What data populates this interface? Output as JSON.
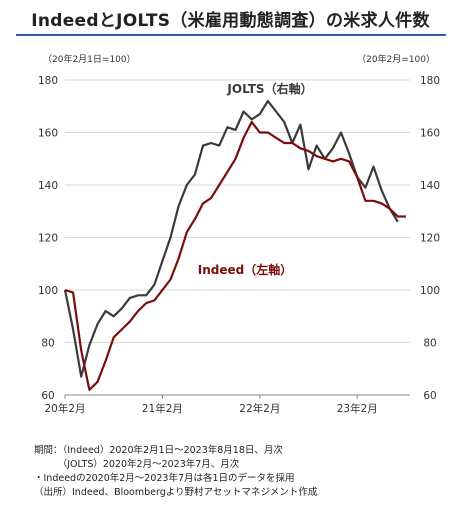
{
  "title": "IndeedとJOLTS（米雇用動態調査）の米求人件数",
  "unit_left": "（20年2月1日=100）",
  "unit_right": "（20年2月=100）",
  "notes": [
    "期間：（Indeed）2020年2月1日～2023年8月18日、月次",
    "　　　（JOLTS）2020年2月～2023年7月、月次",
    "・Indeedの2020年2月～2023年7月は各1日のデータを採用",
    "（出所）Indeed、Bloombergより野村アセットマネジメント作成"
  ],
  "chart_data": {
    "type": "line",
    "x_tick_labels": [
      "20年2月",
      "21年2月",
      "22年2月",
      "23年2月"
    ],
    "x_tick_positions": [
      0,
      12,
      24,
      36
    ],
    "ylim_left": [
      60,
      180
    ],
    "ylim_right": [
      60,
      180
    ],
    "y_ticks": [
      60,
      80,
      100,
      120,
      140,
      160,
      180
    ],
    "grid": true,
    "series": [
      {
        "name": "JOLTS（右軸）",
        "axis": "right",
        "color": "#3a3a3a",
        "x": [
          0,
          1,
          2,
          3,
          4,
          5,
          6,
          7,
          8,
          9,
          10,
          11,
          12,
          13,
          14,
          15,
          16,
          17,
          18,
          19,
          20,
          21,
          22,
          23,
          24,
          25,
          26,
          27,
          28,
          29,
          30,
          31,
          32,
          33,
          34,
          35,
          36,
          37,
          38,
          39,
          40,
          41
        ],
        "values": [
          100,
          85,
          67,
          79,
          87,
          92,
          90,
          93,
          97,
          98,
          98,
          102,
          111,
          120,
          132,
          140,
          144,
          155,
          156,
          155,
          162,
          161,
          168,
          165,
          167,
          172,
          168,
          164,
          156,
          163,
          146,
          155,
          150,
          154,
          160,
          152,
          143,
          139,
          147,
          138,
          131,
          126
        ]
      },
      {
        "name": "Indeed（左軸）",
        "axis": "left",
        "color": "#7a0c0c",
        "x": [
          0,
          1,
          2,
          3,
          4,
          5,
          6,
          7,
          8,
          9,
          10,
          11,
          12,
          13,
          14,
          15,
          16,
          17,
          18,
          19,
          20,
          21,
          22,
          23,
          24,
          25,
          26,
          27,
          28,
          29,
          30,
          31,
          32,
          33,
          34,
          35,
          36,
          37,
          38,
          39,
          40,
          41,
          42
        ],
        "values": [
          100,
          99,
          77,
          62,
          65,
          73,
          82,
          85,
          88,
          92,
          95,
          96,
          100,
          104,
          112,
          122,
          127,
          133,
          135,
          140,
          145,
          150,
          158,
          164,
          160,
          160,
          158,
          156,
          156,
          154,
          153,
          151,
          150,
          149,
          150,
          149,
          143,
          134,
          134,
          133,
          131,
          128,
          128
        ]
      }
    ],
    "annotations": [
      {
        "text": "JOLTS（右軸）",
        "color": "#3a3a3a"
      },
      {
        "text": "Indeed（左軸）",
        "color": "#7a0c0c"
      }
    ]
  }
}
